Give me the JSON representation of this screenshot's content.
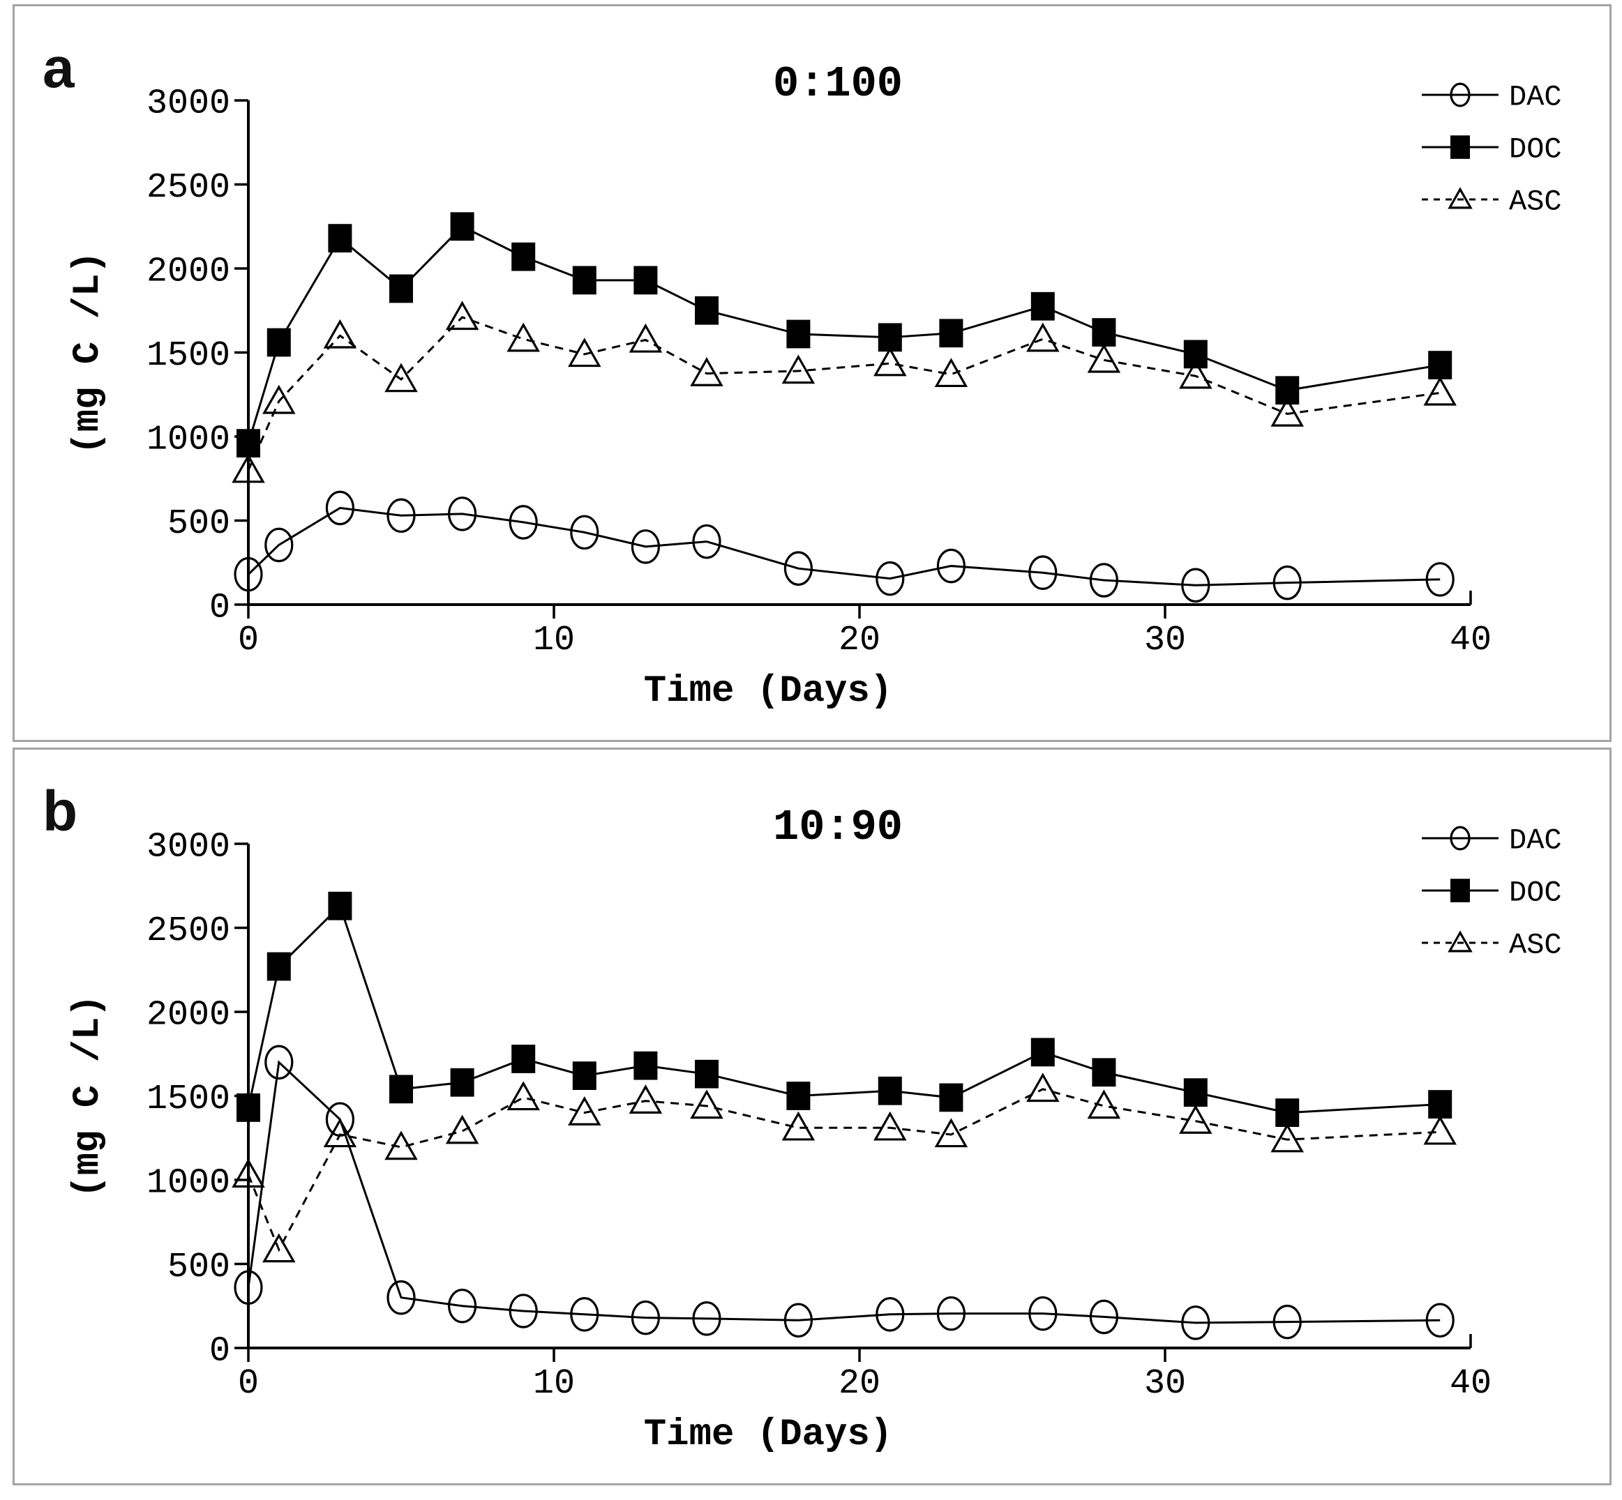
{
  "figure": {
    "background_color": "#ffffff",
    "frame_border_color": "#a3a3a3",
    "ink_color": "#000000"
  },
  "chart_data": [
    {
      "type": "line",
      "panel_letter": "a",
      "title": "0:100",
      "xlabel": "Time (Days)",
      "ylabel": "(mg C /L)",
      "xlim": [
        0,
        40
      ],
      "ylim": [
        0,
        3000
      ],
      "xticks": [
        0,
        10,
        20,
        30,
        40
      ],
      "yticks": [
        0,
        500,
        1000,
        1500,
        2000,
        2500,
        3000
      ],
      "grid": false,
      "legend_position": "top-right",
      "x_days": [
        0,
        1,
        3,
        5,
        7,
        9,
        11,
        13,
        15,
        18,
        21,
        23,
        26,
        28,
        31,
        34,
        39
      ],
      "series": [
        {
          "name": "DAC",
          "marker": "circle",
          "line": "solid",
          "color": "#000000",
          "values": [
            180,
            355,
            575,
            530,
            540,
            490,
            430,
            345,
            375,
            215,
            155,
            230,
            190,
            145,
            115,
            130,
            150
          ]
        },
        {
          "name": "DOC",
          "marker": "square-filled",
          "line": "solid",
          "color": "#000000",
          "values": [
            960,
            1560,
            2180,
            1880,
            2250,
            2070,
            1930,
            1930,
            1750,
            1610,
            1590,
            1615,
            1775,
            1620,
            1490,
            1275,
            1425
          ]
        },
        {
          "name": "ASC",
          "marker": "triangle",
          "line": "dashed",
          "color": "#000000",
          "values": [
            800,
            1210,
            1600,
            1340,
            1710,
            1580,
            1490,
            1575,
            1375,
            1390,
            1435,
            1370,
            1580,
            1455,
            1360,
            1135,
            1260
          ]
        }
      ]
    },
    {
      "type": "line",
      "panel_letter": "b",
      "title": "10:90",
      "xlabel": "Time (Days)",
      "ylabel": "(mg C /L)",
      "xlim": [
        0,
        40
      ],
      "ylim": [
        0,
        3000
      ],
      "xticks": [
        0,
        10,
        20,
        30,
        40
      ],
      "yticks": [
        0,
        500,
        1000,
        1500,
        2000,
        2500,
        3000
      ],
      "grid": false,
      "legend_position": "top-right",
      "x_days": [
        0,
        1,
        3,
        5,
        7,
        9,
        11,
        13,
        15,
        18,
        21,
        23,
        26,
        28,
        31,
        34,
        39
      ],
      "series": [
        {
          "name": "DAC",
          "marker": "circle",
          "line": "solid",
          "color": "#000000",
          "values": [
            360,
            1700,
            1360,
            300,
            250,
            220,
            200,
            180,
            175,
            165,
            200,
            205,
            205,
            185,
            150,
            155,
            165
          ]
        },
        {
          "name": "DOC",
          "marker": "square-filled",
          "line": "solid",
          "color": "#000000",
          "values": [
            1430,
            2270,
            2630,
            1540,
            1580,
            1720,
            1620,
            1680,
            1630,
            1500,
            1530,
            1490,
            1760,
            1640,
            1520,
            1400,
            1450
          ]
        },
        {
          "name": "ASC",
          "marker": "triangle",
          "line": "dashed",
          "color": "#000000",
          "values": [
            1030,
            585,
            1270,
            1195,
            1290,
            1490,
            1400,
            1470,
            1440,
            1310,
            1310,
            1270,
            1540,
            1440,
            1350,
            1240,
            1285
          ]
        }
      ]
    }
  ]
}
